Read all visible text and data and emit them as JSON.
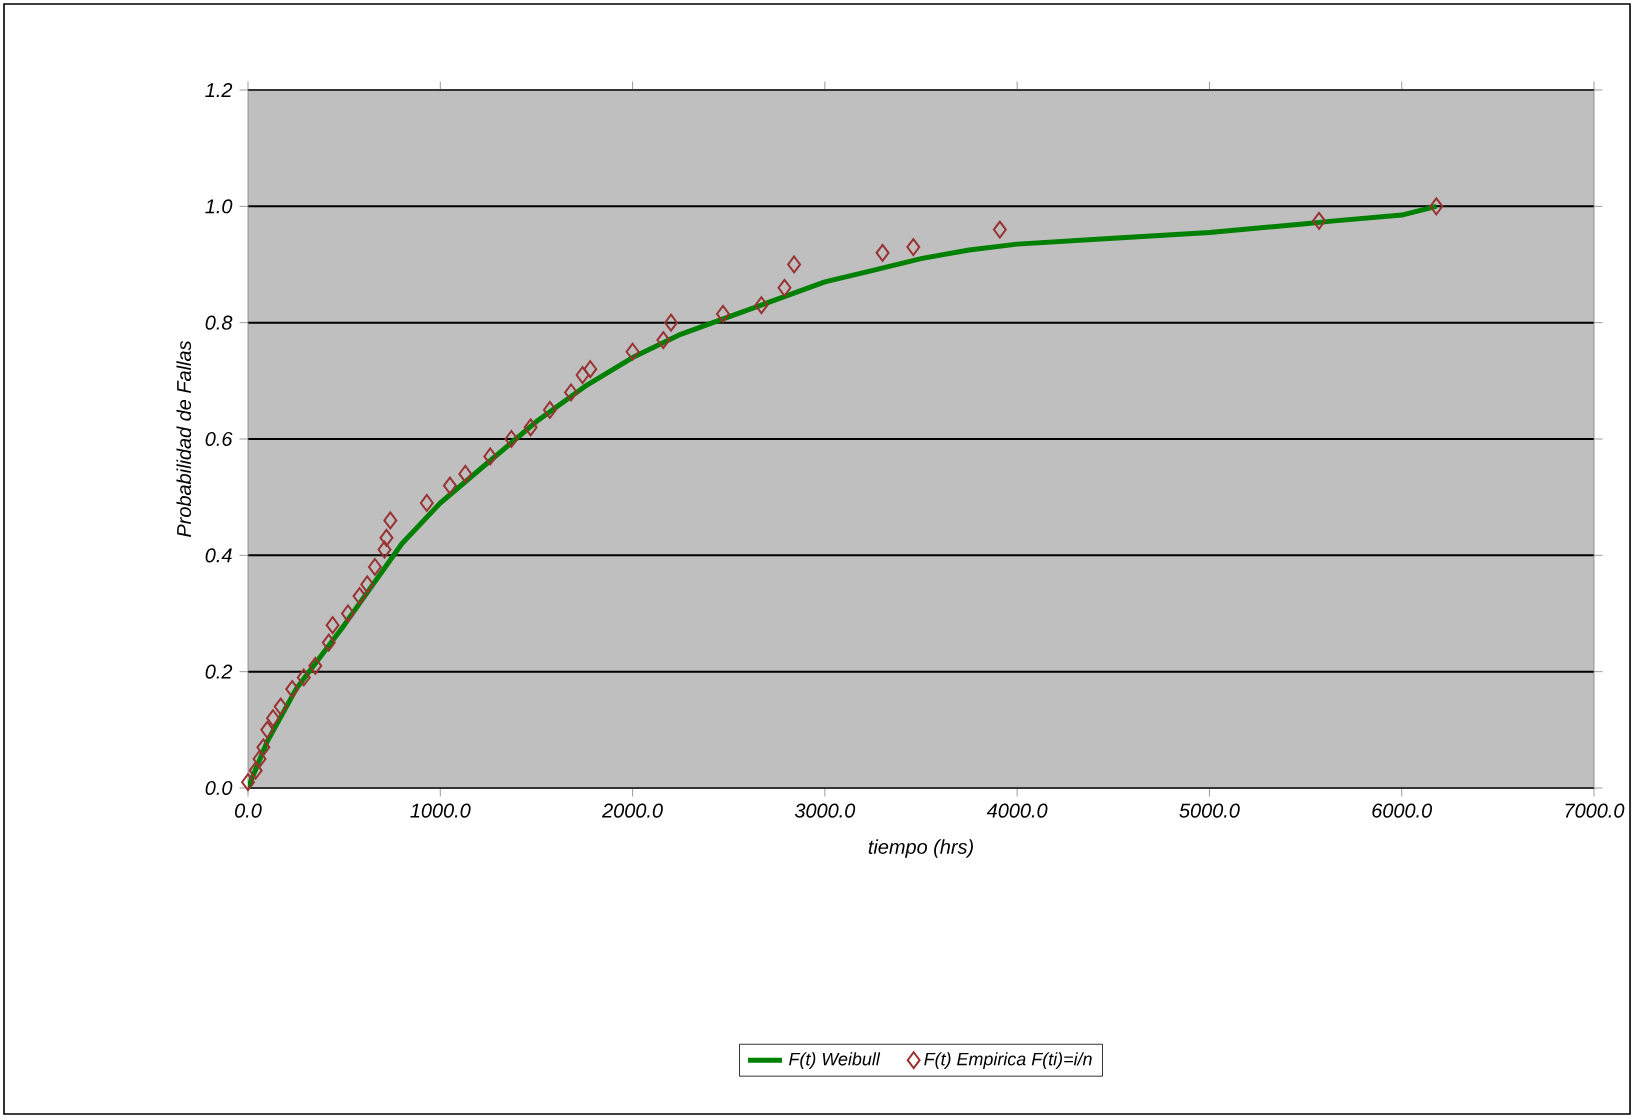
{
  "chart_data": {
    "type": "line",
    "xlabel": "tiempo (hrs)",
    "ylabel": "Probabilidad de Fallas",
    "xlim": [
      0,
      7000
    ],
    "ylim": [
      0,
      1.2
    ],
    "xticks": [
      {
        "value": 0,
        "label": "0.0"
      },
      {
        "value": 1000,
        "label": "1000.0"
      },
      {
        "value": 2000,
        "label": "2000.0"
      },
      {
        "value": 3000,
        "label": "3000.0"
      },
      {
        "value": 4000,
        "label": "4000.0"
      },
      {
        "value": 5000,
        "label": "5000.0"
      },
      {
        "value": 6000,
        "label": "6000.0"
      },
      {
        "value": 7000,
        "label": "7000.0"
      }
    ],
    "yticks": [
      {
        "value": 0,
        "label": "0.0"
      },
      {
        "value": 0.2,
        "label": "0.2"
      },
      {
        "value": 0.4,
        "label": "0.4"
      },
      {
        "value": 0.6,
        "label": "0.6"
      },
      {
        "value": 0.8,
        "label": "0.8"
      },
      {
        "value": 1.0,
        "label": "1.0"
      },
      {
        "value": 1.2,
        "label": "1.2"
      }
    ],
    "grid": "y",
    "legend": "bottom",
    "series": [
      {
        "name": "F(t) Weibull",
        "color": "#008000",
        "marker": "none",
        "line_style": "solid",
        "x": [
          0,
          100,
          250,
          500,
          800,
          1000,
          1250,
          1500,
          1750,
          2000,
          2250,
          2500,
          2750,
          3000,
          3250,
          3500,
          3750,
          4000,
          4500,
          5000,
          5500,
          5650,
          6000,
          6180
        ],
        "values": [
          0,
          0.08,
          0.17,
          0.28,
          0.42,
          0.49,
          0.56,
          0.63,
          0.69,
          0.74,
          0.78,
          0.81,
          0.84,
          0.87,
          0.89,
          0.91,
          0.925,
          0.935,
          0.945,
          0.955,
          0.97,
          0.975,
          0.985,
          1.0
        ]
      },
      {
        "name": "F(t) Empirica  F(ti)=i/n",
        "type": "scatter",
        "color": "#993333",
        "marker": "diamond",
        "x": [
          0,
          40,
          60,
          80,
          100,
          130,
          170,
          230,
          290,
          350,
          420,
          440,
          520,
          580,
          620,
          660,
          710,
          720,
          740,
          930,
          1050,
          1130,
          1260,
          1370,
          1470,
          1570,
          1680,
          1740,
          1780,
          2000,
          2160,
          2200,
          2470,
          2670,
          2790,
          2840,
          3300,
          3460,
          3910,
          5570,
          6180
        ],
        "values": [
          0.01,
          0.03,
          0.05,
          0.07,
          0.1,
          0.12,
          0.14,
          0.17,
          0.19,
          0.21,
          0.25,
          0.28,
          0.3,
          0.33,
          0.35,
          0.38,
          0.41,
          0.43,
          0.46,
          0.49,
          0.52,
          0.54,
          0.57,
          0.6,
          0.62,
          0.65,
          0.68,
          0.71,
          0.72,
          0.75,
          0.77,
          0.8,
          0.815,
          0.83,
          0.86,
          0.9,
          0.92,
          0.93,
          0.96,
          0.975,
          1.0
        ]
      }
    ]
  }
}
